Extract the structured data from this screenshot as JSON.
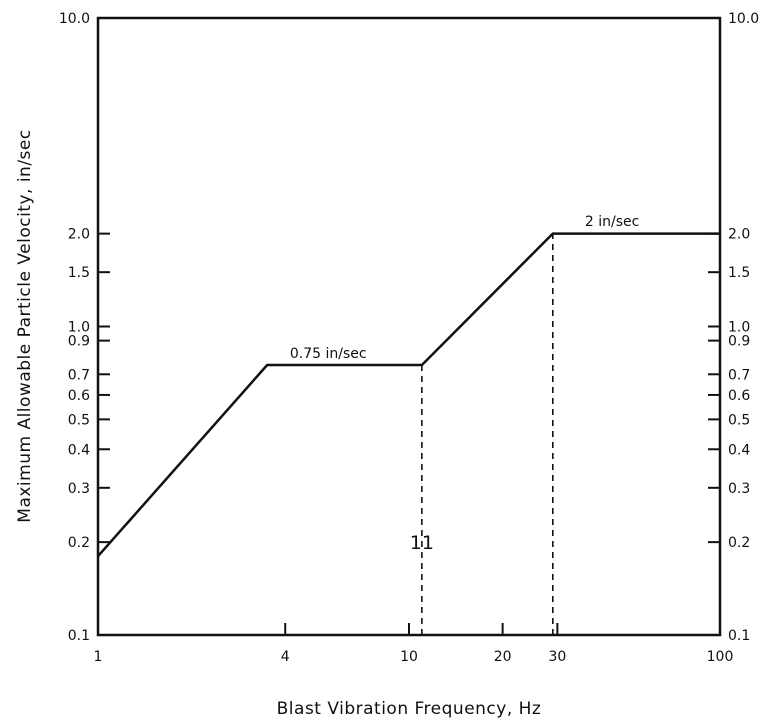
{
  "chart_data": {
    "type": "line",
    "xscale": "log",
    "yscale": "log",
    "xlim": [
      1,
      100
    ],
    "ylim": [
      0.1,
      10.0
    ],
    "xlabel": "Blast Vibration Frequency, Hz",
    "ylabel": "Maximum Allowable Particle Velocity, in/sec",
    "x_ticks": [
      {
        "value": 1,
        "label": "1"
      },
      {
        "value": 4,
        "label": "4"
      },
      {
        "value": 10,
        "label": "10"
      },
      {
        "value": 20,
        "label": "20"
      },
      {
        "value": 30,
        "label": "30"
      },
      {
        "value": 100,
        "label": "100"
      }
    ],
    "y_ticks": [
      {
        "value": 0.1,
        "label": "0.1"
      },
      {
        "value": 0.2,
        "label": "0.2"
      },
      {
        "value": 0.3,
        "label": "0.3"
      },
      {
        "value": 0.4,
        "label": "0.4"
      },
      {
        "value": 0.5,
        "label": "0.5"
      },
      {
        "value": 0.6,
        "label": "0.6"
      },
      {
        "value": 0.7,
        "label": "0.7"
      },
      {
        "value": 0.9,
        "label": "0.9"
      },
      {
        "value": 1.0,
        "label": "1.0"
      },
      {
        "value": 1.5,
        "label": "1.5"
      },
      {
        "value": 2.0,
        "label": "2.0"
      },
      {
        "value": 10.0,
        "label": "10.0"
      }
    ],
    "series": [
      {
        "x": [
          1,
          3.5,
          11,
          29,
          100
        ],
        "y": [
          0.18,
          0.75,
          0.75,
          2.0,
          2.0
        ]
      }
    ],
    "reference_lines": [
      {
        "x": 11,
        "y_from": 0.1,
        "y_to": 0.75
      },
      {
        "x": 29,
        "y_from": 0.1,
        "y_to": 2.0
      }
    ],
    "annotations": [
      {
        "text": "0.75 in/sec",
        "x": 5.5,
        "y": 0.79
      },
      {
        "text": "2 in/sec",
        "x": 45,
        "y": 2.12
      },
      {
        "text": "11",
        "x": 11,
        "y": 0.19
      }
    ],
    "grid": false,
    "legend": "none"
  }
}
